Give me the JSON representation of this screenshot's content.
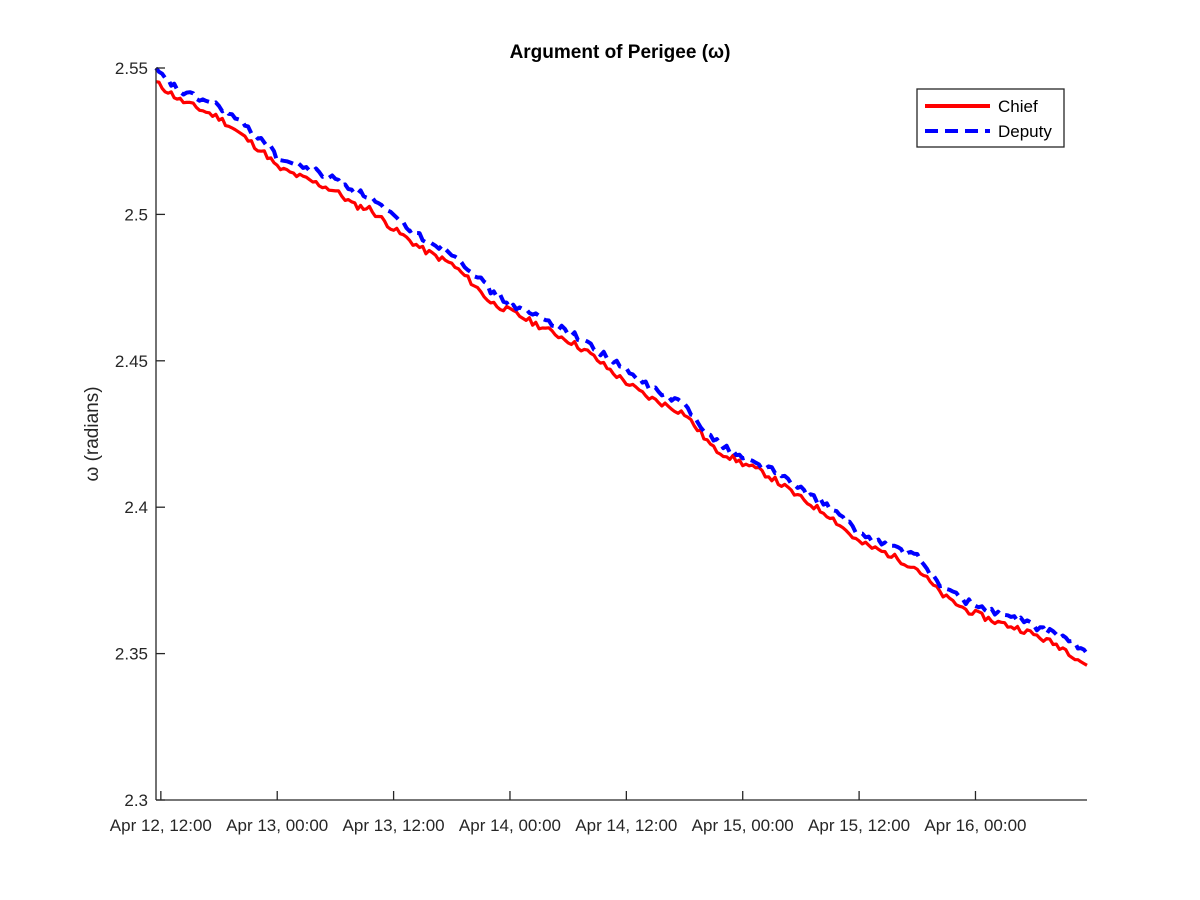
{
  "chart_data": {
    "type": "line",
    "title": "Argument of Perigee (ω)",
    "xlabel": "",
    "ylabel": "ω (radians)",
    "x_ticks": [
      "Apr 12, 12:00",
      "Apr 13, 00:00",
      "Apr 13, 12:00",
      "Apr 14, 00:00",
      "Apr 14, 12:00",
      "Apr 15, 00:00",
      "Apr 15, 12:00",
      "Apr 16, 00:00"
    ],
    "x_tick_hours": [
      0,
      12,
      24,
      36,
      48,
      60,
      72,
      84
    ],
    "xlim_hours": [
      -0.5,
      95.5
    ],
    "y_ticks": [
      "2.3",
      "2.35",
      "2.4",
      "2.45",
      "2.5",
      "2.55"
    ],
    "ylim": [
      2.3,
      2.55
    ],
    "grid": false,
    "legend_position": "top-right",
    "series": [
      {
        "name": "Chief",
        "color": "#ff0000",
        "style": "solid",
        "x_hours": [
          -0.5,
          2,
          6,
          8,
          11,
          12,
          15,
          18,
          20,
          21.5,
          24,
          27,
          30,
          32,
          34,
          36,
          39,
          42,
          44,
          47,
          50,
          52,
          54,
          57,
          60,
          62,
          63,
          66,
          69,
          71,
          72,
          75,
          78,
          80,
          81,
          83,
          86,
          89,
          91,
          93,
          95.5
        ],
        "values": [
          2.545,
          2.539,
          2.533,
          2.528,
          2.52,
          2.516,
          2.512,
          2.508,
          2.503,
          2.502,
          2.495,
          2.488,
          2.483,
          2.477,
          2.47,
          2.467,
          2.462,
          2.457,
          2.453,
          2.445,
          2.438,
          2.435,
          2.432,
          2.42,
          2.415,
          2.412,
          2.41,
          2.403,
          2.397,
          2.391,
          2.388,
          2.384,
          2.379,
          2.372,
          2.369,
          2.365,
          2.361,
          2.358,
          2.355,
          2.352,
          2.346
        ]
      },
      {
        "name": "Deputy",
        "color": "#0000ff",
        "style": "dashed",
        "x_hours": [
          -0.5,
          2,
          6,
          8,
          11,
          12,
          15,
          18,
          20,
          21.5,
          24,
          27,
          30,
          32,
          34,
          36,
          39,
          42,
          44,
          47,
          50,
          52,
          54,
          57,
          60,
          62,
          63,
          66,
          69,
          71,
          72,
          75,
          78,
          80,
          81,
          83,
          86,
          89,
          91,
          93,
          95.5
        ],
        "values": [
          2.549,
          2.542,
          2.537,
          2.532,
          2.524,
          2.519,
          2.516,
          2.512,
          2.508,
          2.506,
          2.499,
          2.492,
          2.487,
          2.481,
          2.474,
          2.469,
          2.465,
          2.46,
          2.456,
          2.449,
          2.442,
          2.438,
          2.435,
          2.423,
          2.417,
          2.414,
          2.413,
          2.406,
          2.4,
          2.394,
          2.391,
          2.387,
          2.383,
          2.375,
          2.372,
          2.368,
          2.364,
          2.361,
          2.358,
          2.356,
          2.35
        ]
      }
    ]
  }
}
